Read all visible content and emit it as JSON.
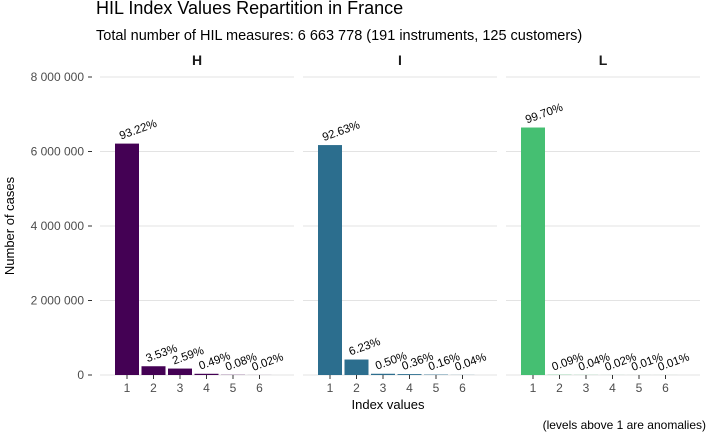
{
  "chart_data": {
    "type": "bar",
    "title": "HIL Index Values Repartition in France",
    "subtitle": "Total number of HIL measures: 6 663 778 (191 instruments, 125 customers)",
    "xlabel": "Index values",
    "ylabel": "Number of cases",
    "caption": "(levels above 1 are anomalies)",
    "ylim": [
      0,
      8000000
    ],
    "y_ticks": [
      {
        "value": 0,
        "label": "0"
      },
      {
        "value": 2000000,
        "label": "2 000 000"
      },
      {
        "value": 4000000,
        "label": "4 000 000"
      },
      {
        "value": 6000000,
        "label": "6 000 000"
      },
      {
        "value": 8000000,
        "label": "8 000 000"
      }
    ],
    "grid": true,
    "legend": "none",
    "categories": [
      "1",
      "2",
      "3",
      "4",
      "5",
      "6"
    ],
    "panels": [
      {
        "name": "H",
        "color": "#440154",
        "values": [
          6212000,
          235000,
          172600,
          32600,
          5300,
          1330
        ],
        "labels": [
          "93.22%",
          "3.53%",
          "2.59%",
          "0.49%",
          "0.08%",
          "0.02%"
        ]
      },
      {
        "name": "I",
        "color": "#2C6E8E",
        "values": [
          6172700,
          415200,
          33300,
          24000,
          10700,
          2670
        ],
        "labels": [
          "92.63%",
          "6.23%",
          "0.50%",
          "0.36%",
          "0.16%",
          "0.04%"
        ]
      },
      {
        "name": "L",
        "color": "#45BF72",
        "values": [
          6643800,
          6000,
          2670,
          1330,
          670,
          670
        ],
        "labels": [
          "99.70%",
          "0.09%",
          "0.04%",
          "0.02%",
          "0.01%",
          "0.01%"
        ]
      }
    ]
  }
}
